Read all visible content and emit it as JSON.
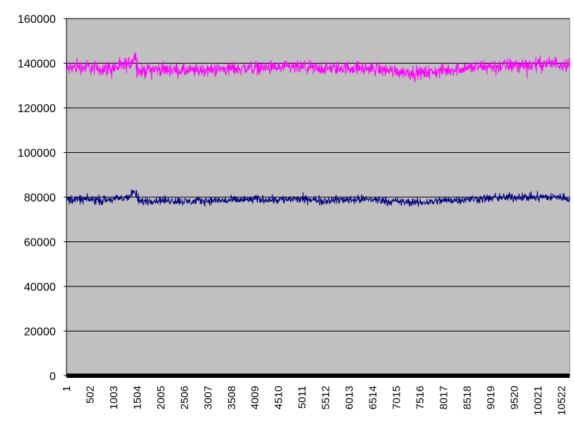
{
  "chart_data": {
    "type": "line",
    "title": "",
    "xlabel": "",
    "ylabel": "",
    "ylim": [
      0,
      160000
    ],
    "y_ticks": [
      0,
      20000,
      40000,
      60000,
      80000,
      100000,
      120000,
      140000,
      160000
    ],
    "x_tick_labels": [
      "1",
      "502",
      "1003",
      "1504",
      "2005",
      "2506",
      "3007",
      "3508",
      "4009",
      "4510",
      "5011",
      "5512",
      "6013",
      "6514",
      "7015",
      "7516",
      "8017",
      "8518",
      "9019",
      "9520",
      "10021",
      "10522"
    ],
    "x_range": [
      1,
      10700
    ],
    "grid": "horizontal",
    "legend": "none",
    "plot_background": "#c0c0c0",
    "series": [
      {
        "color": "#ff00ff",
        "x": [
          1,
          250,
          500,
          750,
          1000,
          1200,
          1350,
          1450,
          1504,
          1550,
          1800,
          2200,
          2600,
          3000,
          3500,
          4000,
          4500,
          5000,
          5500,
          6000,
          6500,
          7000,
          7500,
          8000,
          8500,
          9000,
          9500,
          10000,
          10500,
          10700
        ],
        "y": [
          137500,
          138500,
          138000,
          137500,
          138000,
          138500,
          140000,
          143000,
          140000,
          136000,
          137500,
          137000,
          136500,
          137000,
          137500,
          138000,
          138000,
          138000,
          137500,
          138000,
          137500,
          136500,
          135500,
          136500,
          138000,
          138500,
          139000,
          139500,
          140000,
          139500
        ],
        "spread": [
          5500,
          5000,
          5000,
          5000,
          5000,
          5000,
          5500,
          5500,
          8000,
          5000,
          4500,
          4500,
          4500,
          4500,
          4500,
          4500,
          4500,
          4500,
          4500,
          4500,
          4500,
          4500,
          4500,
          4500,
          4500,
          5000,
          5000,
          5000,
          5000,
          5000
        ]
      },
      {
        "color": "#000080",
        "x": [
          1,
          250,
          500,
          750,
          1000,
          1200,
          1350,
          1450,
          1504,
          1550,
          1800,
          2200,
          2600,
          3000,
          3500,
          4000,
          4500,
          5000,
          5500,
          6000,
          6500,
          7000,
          7500,
          8000,
          8500,
          9000,
          9500,
          10000,
          10500,
          10700
        ],
        "y": [
          79000,
          79000,
          79000,
          78500,
          79000,
          79500,
          80500,
          82500,
          79500,
          78000,
          78500,
          78500,
          78000,
          78500,
          78500,
          79000,
          79000,
          79000,
          78500,
          79000,
          79000,
          78000,
          77500,
          78500,
          79000,
          79500,
          80000,
          80000,
          80000,
          79500
        ],
        "spread": [
          3200,
          3000,
          3000,
          3000,
          3000,
          3000,
          3200,
          3200,
          5000,
          3000,
          2800,
          2800,
          2800,
          2800,
          2800,
          2800,
          2800,
          2800,
          2800,
          2800,
          2800,
          2800,
          2800,
          2800,
          2800,
          3000,
          3000,
          3000,
          3000,
          3000
        ]
      }
    ]
  }
}
